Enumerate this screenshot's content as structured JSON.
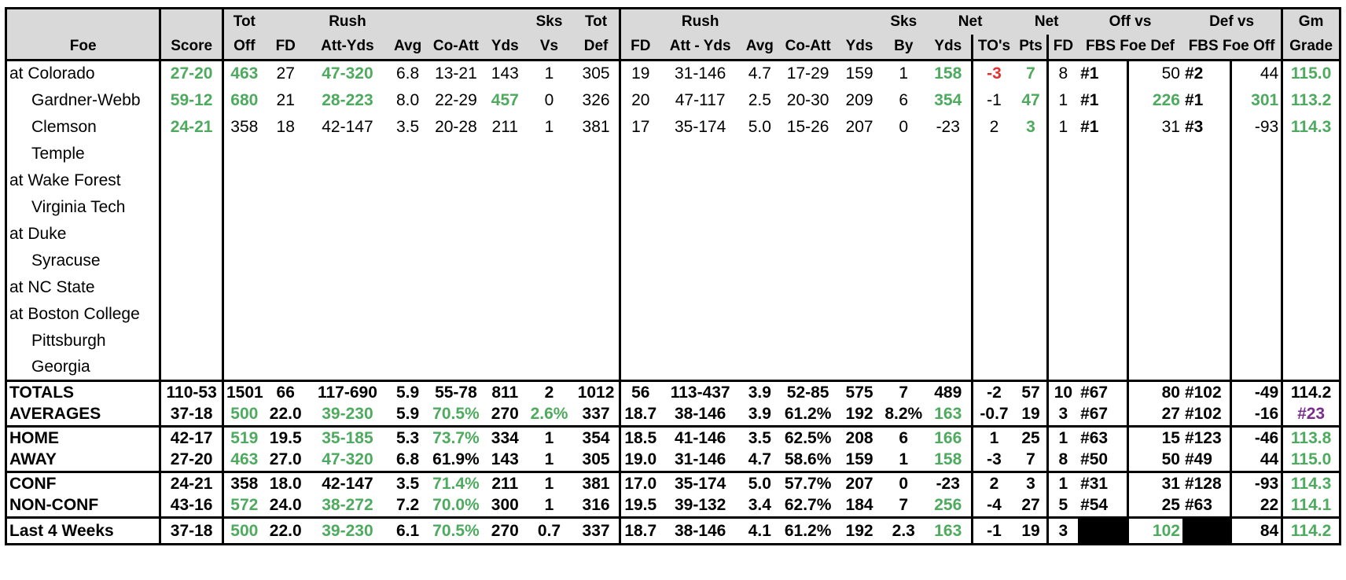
{
  "header": {
    "row1": [
      "",
      "",
      "Tot",
      "",
      "Rush",
      "",
      "",
      "",
      "Sks",
      "Tot",
      "",
      "Rush",
      "",
      "",
      "",
      "Sks",
      "Net",
      "Net",
      "Off vs",
      "Def vs",
      "Gm"
    ],
    "row2": [
      "Foe",
      "Score",
      "Off",
      "FD",
      "Att-Yds",
      "Avg",
      "Co-Att",
      "Yds",
      "Vs",
      "Def",
      "FD",
      "Att - Yds",
      "Avg",
      "Co-Att",
      "Yds",
      "By",
      "Yds",
      "TO's",
      "Pts",
      "FD",
      "FBS Foe Def",
      "FBS Foe Off",
      "Grade"
    ]
  },
  "games": [
    {
      "foe": "at Colorado",
      "home": false,
      "cells": [
        "27-20",
        "463",
        "27",
        "47-320",
        "6.8",
        "13-21",
        "143",
        "1",
        "305",
        "19",
        "31-146",
        "4.7",
        "17-29",
        "159",
        "1",
        "158",
        "-3",
        "7",
        "8",
        "#1",
        "50",
        "#2",
        "44",
        "115.0"
      ]
    },
    {
      "foe": "Gardner-Webb",
      "home": true,
      "cells": [
        "59-12",
        "680",
        "21",
        "28-223",
        "8.0",
        "22-29",
        "457",
        "0",
        "326",
        "20",
        "47-117",
        "2.5",
        "20-30",
        "209",
        "6",
        "354",
        "-1",
        "47",
        "1",
        "#1",
        "226",
        "#1",
        "301",
        "113.2"
      ]
    },
    {
      "foe": "Clemson",
      "home": true,
      "cells": [
        "24-21",
        "358",
        "18",
        "42-147",
        "3.5",
        "20-28",
        "211",
        "1",
        "381",
        "17",
        "35-174",
        "5.0",
        "15-26",
        "207",
        "0",
        "-23",
        "2",
        "3",
        "1",
        "#1",
        "31",
        "#3",
        "-93",
        "114.3"
      ]
    },
    {
      "foe": "Temple",
      "home": true,
      "cells": []
    },
    {
      "foe": "at Wake Forest",
      "home": false,
      "cells": []
    },
    {
      "foe": "Virginia Tech",
      "home": true,
      "cells": []
    },
    {
      "foe": "at Duke",
      "home": false,
      "cells": []
    },
    {
      "foe": "Syracuse",
      "home": true,
      "cells": []
    },
    {
      "foe": "at NC State",
      "home": false,
      "cells": []
    },
    {
      "foe": "at Boston College",
      "home": false,
      "cells": []
    },
    {
      "foe": "Pittsburgh",
      "home": true,
      "cells": []
    },
    {
      "foe": "Georgia",
      "home": true,
      "cells": []
    }
  ],
  "summary": [
    {
      "label": "TOTALS",
      "cells": [
        "110-53",
        "1501",
        "66",
        "117-690",
        "5.9",
        "55-78",
        "811",
        "2",
        "1012",
        "56",
        "113-437",
        "3.9",
        "52-85",
        "575",
        "7",
        "489",
        "-2",
        "57",
        "10",
        "#67",
        "80",
        "#102",
        "-49",
        "114.2"
      ]
    },
    {
      "label": "AVERAGES",
      "cells": [
        "37-18",
        "500",
        "22.0",
        "39-230",
        "5.9",
        "70.5%",
        "270",
        "2.6%",
        "337",
        "18.7",
        "38-146",
        "3.9",
        "61.2%",
        "192",
        "8.2%",
        "163",
        "-0.7",
        "19",
        "3",
        "#67",
        "27",
        "#102",
        "-16",
        "#23"
      ]
    },
    {
      "label": "HOME",
      "cells": [
        "42-17",
        "519",
        "19.5",
        "35-185",
        "5.3",
        "73.7%",
        "334",
        "1",
        "354",
        "18.5",
        "41-146",
        "3.5",
        "62.5%",
        "208",
        "6",
        "166",
        "1",
        "25",
        "1",
        "#63",
        "15",
        "#123",
        "-46",
        "113.8"
      ]
    },
    {
      "label": "AWAY",
      "cells": [
        "27-20",
        "463",
        "27.0",
        "47-320",
        "6.8",
        "61.9%",
        "143",
        "1",
        "305",
        "19.0",
        "31-146",
        "4.7",
        "58.6%",
        "159",
        "1",
        "158",
        "-3",
        "7",
        "8",
        "#50",
        "50",
        "#49",
        "44",
        "115.0"
      ]
    },
    {
      "label": "CONF",
      "cells": [
        "24-21",
        "358",
        "18.0",
        "42-147",
        "3.5",
        "71.4%",
        "211",
        "1",
        "381",
        "17.0",
        "35-174",
        "5.0",
        "57.7%",
        "207",
        "0",
        "-23",
        "2",
        "3",
        "1",
        "#31",
        "31",
        "#128",
        "-93",
        "114.3"
      ]
    },
    {
      "label": "NON-CONF",
      "cells": [
        "43-16",
        "572",
        "24.0",
        "38-272",
        "7.2",
        "70.0%",
        "300",
        "1",
        "316",
        "19.5",
        "39-132",
        "3.4",
        "62.7%",
        "184",
        "7",
        "256",
        "-4",
        "27",
        "5",
        "#54",
        "25",
        "#63",
        "22",
        "114.1"
      ]
    }
  ],
  "last4": {
    "label": "Last 4 Weeks",
    "cells": [
      "37-18",
      "500",
      "22.0",
      "39-230",
      "6.1",
      "70.5%",
      "270",
      "0.7",
      "337",
      "18.7",
      "38-146",
      "4.1",
      "61.2%",
      "192",
      "2.3",
      "163",
      "-1",
      "19",
      "3",
      "",
      "102",
      "",
      "84",
      "114.2"
    ]
  },
  "colors": {
    "header_bg": "#d9d9d9",
    "green": "#4daa5e",
    "red": "#e03030",
    "purple": "#7a2d8e"
  }
}
